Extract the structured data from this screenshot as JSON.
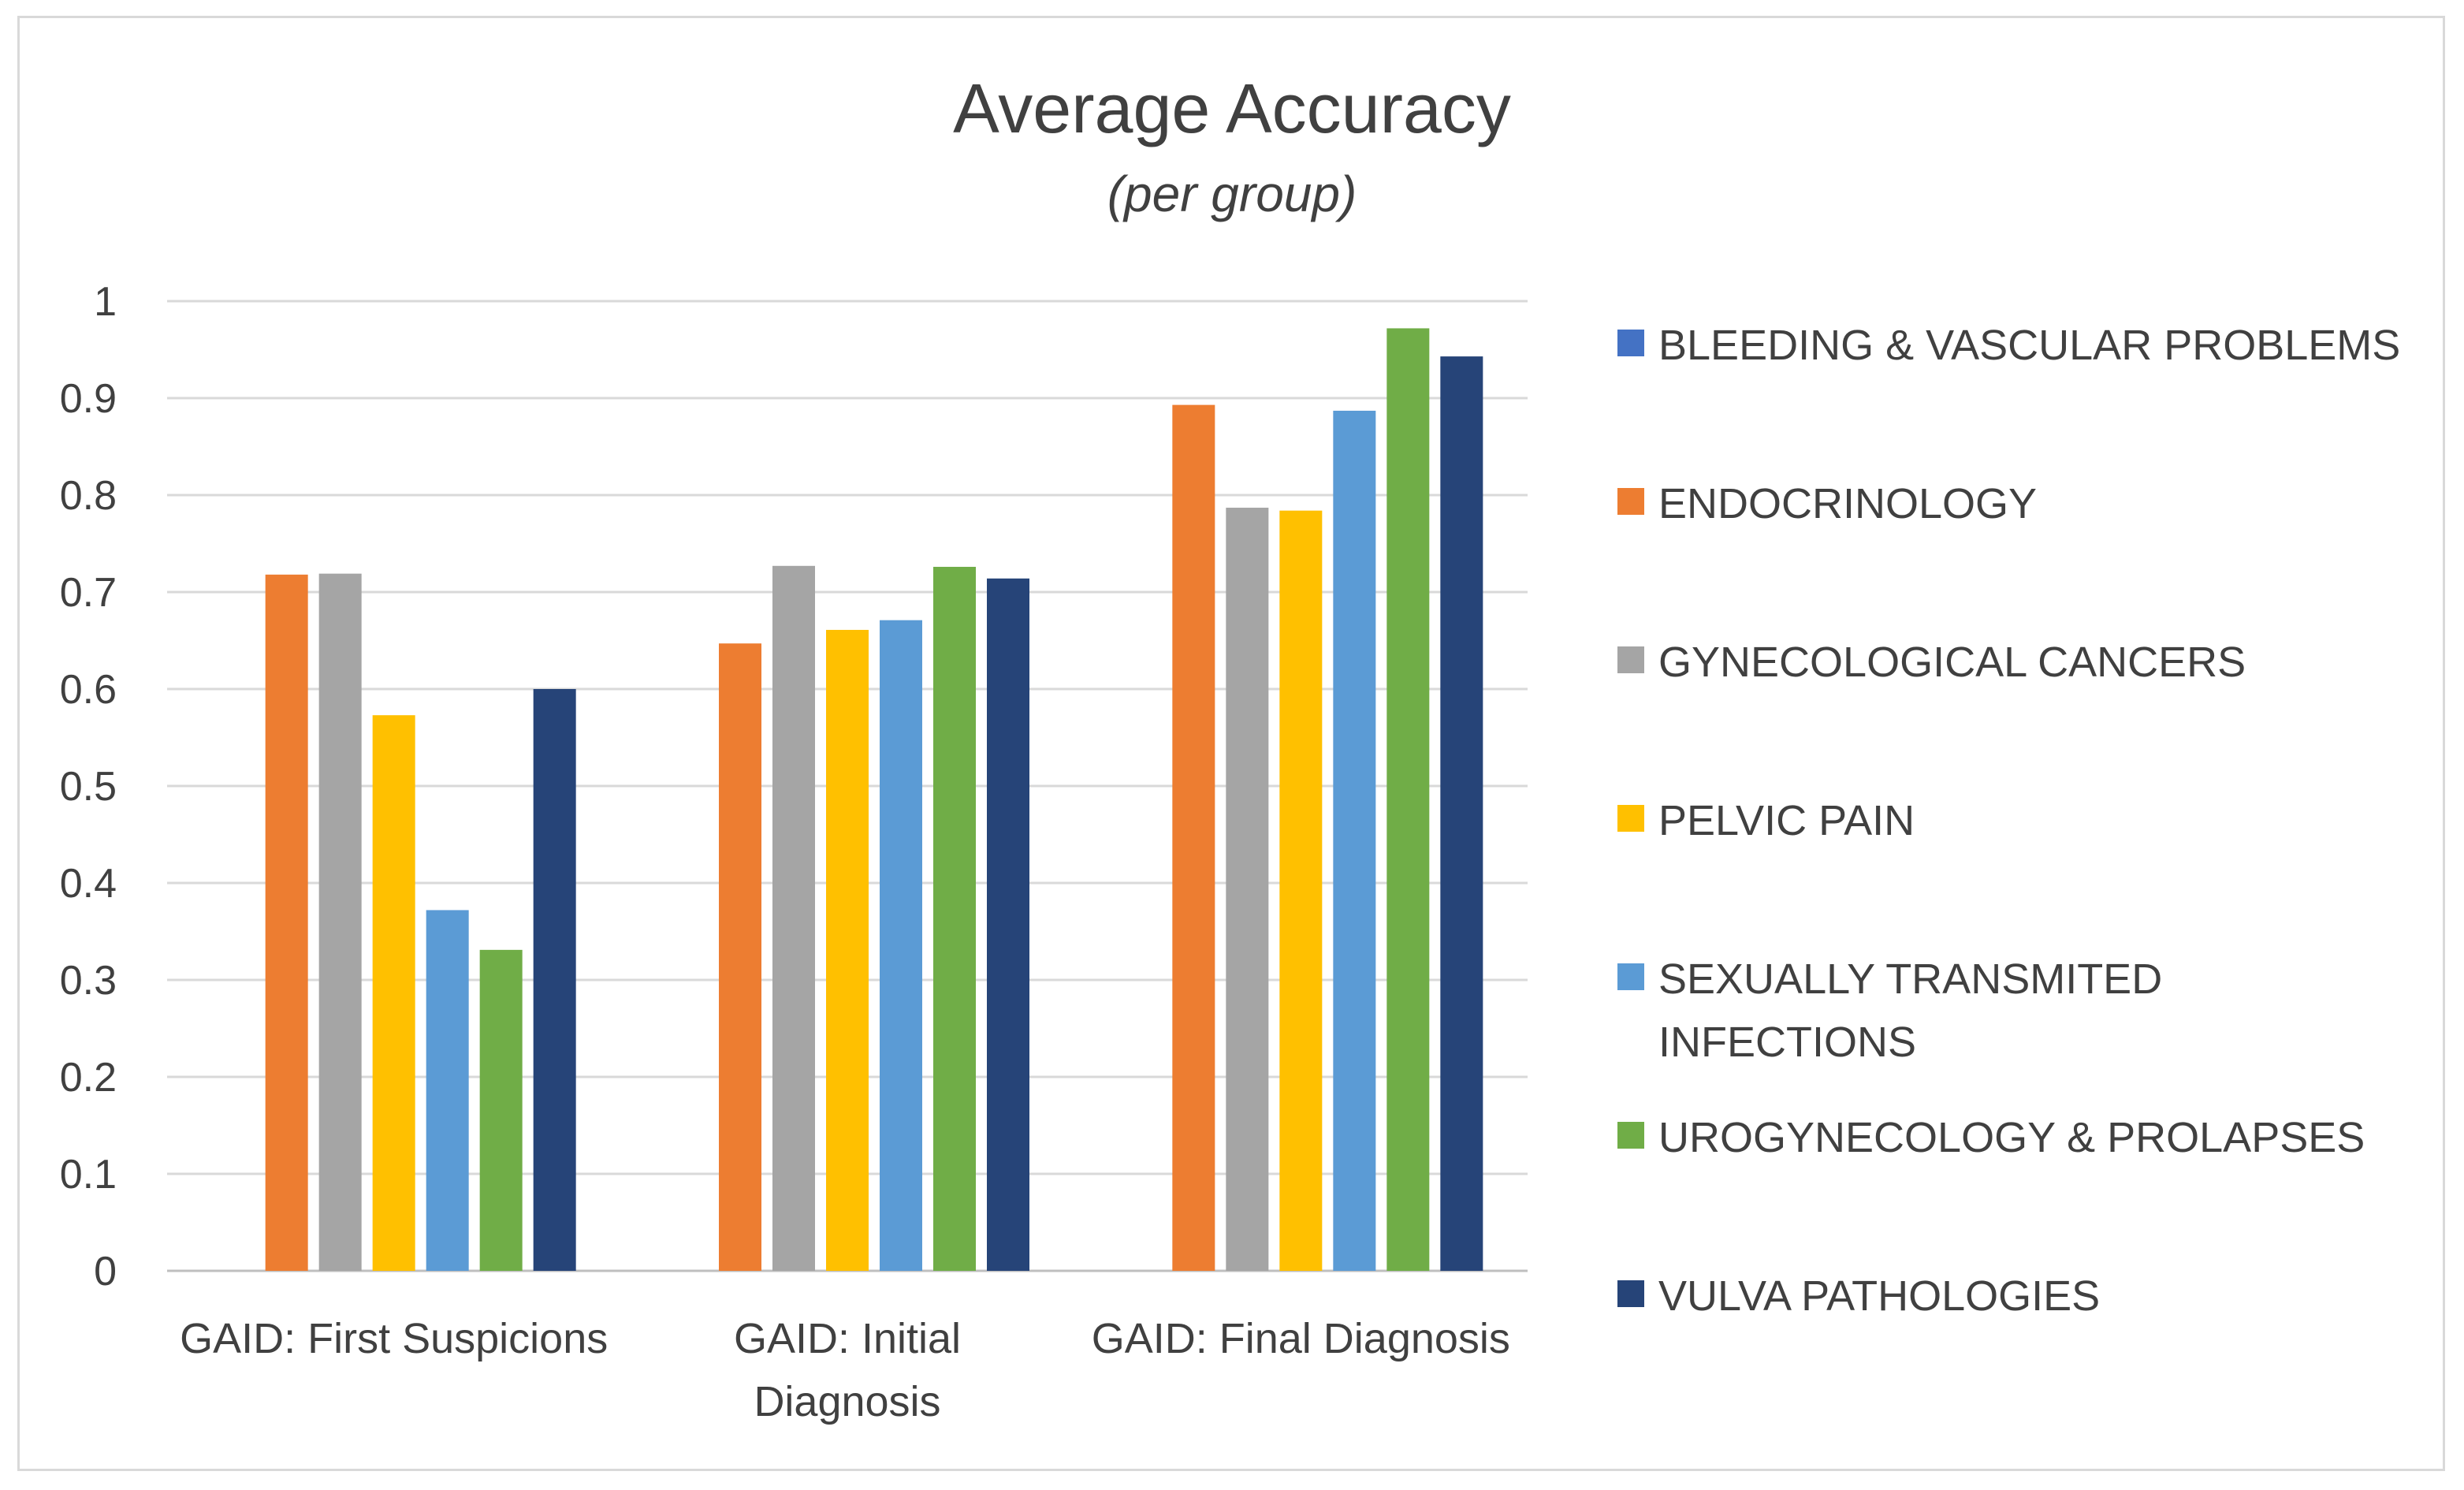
{
  "chart_data": {
    "type": "bar",
    "title": "Average Accuracy",
    "subtitle": "(per group)",
    "xlabel": "",
    "ylabel": "",
    "ylim": [
      0,
      1
    ],
    "yticks": [
      "0",
      "0.1",
      "0.2",
      "0.3",
      "0.4",
      "0.5",
      "0.6",
      "0.7",
      "0.8",
      "0.9",
      "1"
    ],
    "grid": true,
    "legend_position": "right",
    "categories": [
      [
        "GAID: First Suspicions"
      ],
      [
        "GAID: Initial",
        "Diagnosis"
      ],
      [
        "GAID: Final Diagnosis"
      ]
    ],
    "series": [
      {
        "name": [
          "BLEEDING & VASCULAR PROBLEMS"
        ],
        "color": "#4472C4",
        "values": [
          0,
          0,
          0
        ]
      },
      {
        "name": [
          "ENDOCRINOLOGY"
        ],
        "color": "#ED7D31",
        "values": [
          0.718,
          0.647,
          0.893
        ]
      },
      {
        "name": [
          "GYNECOLOGICAL CANCERS"
        ],
        "color": "#A5A5A5",
        "values": [
          0.719,
          0.727,
          0.787
        ]
      },
      {
        "name": [
          "PELVIC PAIN"
        ],
        "color": "#FFC000",
        "values": [
          0.573,
          0.661,
          0.784
        ]
      },
      {
        "name": [
          "SEXUALLY TRANSMITED",
          "INFECTIONS"
        ],
        "color": "#5B9BD5",
        "values": [
          0.372,
          0.671,
          0.887
        ]
      },
      {
        "name": [
          "UROGYNECOLOGY & PROLAPSES"
        ],
        "color": "#70AD47",
        "values": [
          0.331,
          0.726,
          0.972
        ]
      },
      {
        "name": [
          "VULVA PATHOLOGIES"
        ],
        "color": "#264478",
        "values": [
          0.6,
          0.714,
          0.943
        ]
      }
    ]
  }
}
